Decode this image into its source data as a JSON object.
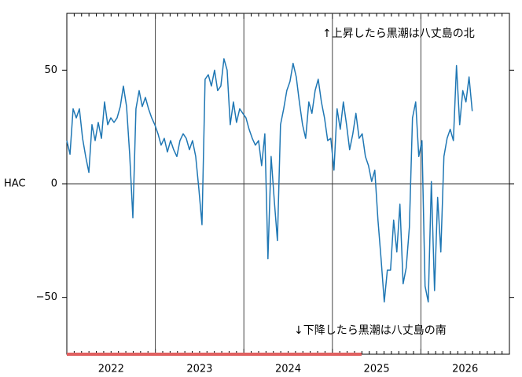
{
  "chart_data": {
    "type": "line",
    "y_label": "HAC",
    "annotations": [
      "↑上昇したら黒潮は八丈島の北",
      "↓下降したら黒潮は八丈島の南"
    ],
    "xlim": [
      2022,
      2027
    ],
    "xticks": [
      {
        "value": 2022.5,
        "label": "2022"
      },
      {
        "value": 2023.5,
        "label": "2023"
      },
      {
        "value": 2024.5,
        "label": "2024"
      },
      {
        "value": 2025.5,
        "label": "2025"
      },
      {
        "value": 2026.5,
        "label": "2026"
      }
    ],
    "xgrid": [
      2023,
      2024,
      2025,
      2026
    ],
    "ylim": [
      -75,
      75
    ],
    "yticks": [
      {
        "value": -50,
        "label": "−50"
      },
      0,
      50
    ],
    "hlines": [
      0
    ],
    "highlight": {
      "xrange": [
        2022,
        2025.33
      ],
      "color": "#e06060"
    },
    "series": [
      {
        "color": "#1f77b4",
        "x": [
          2022.0,
          2022.036,
          2022.071,
          2022.107,
          2022.142,
          2022.178,
          2022.213,
          2022.249,
          2022.284,
          2022.32,
          2022.355,
          2022.391,
          2022.426,
          2022.462,
          2022.497,
          2022.533,
          2022.568,
          2022.604,
          2022.639,
          2022.675,
          2022.71,
          2022.746,
          2022.781,
          2022.817,
          2022.852,
          2022.888,
          2022.923,
          2022.959,
          2022.994,
          2023.03,
          2023.065,
          2023.101,
          2023.136,
          2023.172,
          2023.207,
          2023.243,
          2023.278,
          2023.314,
          2023.349,
          2023.385,
          2023.42,
          2023.456,
          2023.491,
          2023.527,
          2023.562,
          2023.598,
          2023.633,
          2023.669,
          2023.704,
          2023.74,
          2023.775,
          2023.811,
          2023.846,
          2023.882,
          2023.917,
          2023.953,
          2023.988,
          2024.024,
          2024.059,
          2024.095,
          2024.13,
          2024.166,
          2024.201,
          2024.237,
          2024.272,
          2024.308,
          2024.343,
          2024.379,
          2024.414,
          2024.45,
          2024.485,
          2024.521,
          2024.556,
          2024.592,
          2024.627,
          2024.663,
          2024.698,
          2024.734,
          2024.769,
          2024.805,
          2024.84,
          2024.876,
          2024.911,
          2024.947,
          2024.982,
          2025.018,
          2025.053,
          2025.089,
          2025.124,
          2025.16,
          2025.195,
          2025.231,
          2025.266,
          2025.302,
          2025.337,
          2025.373,
          2025.408,
          2025.444,
          2025.479,
          2025.515,
          2025.55,
          2025.586,
          2025.621,
          2025.657,
          2025.692,
          2025.728,
          2025.763,
          2025.799,
          2025.834,
          2025.87,
          2025.905,
          2025.941,
          2025.976,
          2026.012,
          2026.047,
          2026.083,
          2026.118,
          2026.154,
          2026.189,
          2026.225,
          2026.26,
          2026.296,
          2026.331,
          2026.367,
          2026.402,
          2026.438,
          2026.473,
          2026.509,
          2026.544,
          2026.58
        ],
        "values": [
          19,
          13,
          33,
          29,
          33,
          20,
          12,
          5,
          26,
          19,
          27,
          20,
          36,
          26,
          29,
          27,
          29,
          34,
          43,
          34,
          13,
          -15,
          33,
          41,
          34,
          38,
          33,
          29,
          26,
          22,
          17,
          20,
          14,
          19,
          15,
          12,
          19,
          22,
          20,
          15,
          19,
          12,
          -2,
          -18,
          46,
          48,
          43,
          50,
          41,
          43,
          55,
          50,
          26,
          36,
          27,
          33,
          31,
          29,
          24,
          20,
          17,
          19,
          8,
          22,
          -33,
          12,
          -7,
          -25,
          26,
          33,
          41,
          45,
          53,
          47,
          36,
          26,
          20,
          36,
          31,
          41,
          46,
          36,
          29,
          19,
          20,
          6,
          33,
          24,
          36,
          26,
          15,
          22,
          31,
          20,
          22,
          12,
          8,
          1,
          6,
          -16,
          -33,
          -52,
          -38,
          -38,
          -16,
          -30,
          -9,
          -44,
          -37,
          -19,
          29,
          36,
          12,
          19,
          -45,
          -52,
          1,
          -47,
          -6,
          -30,
          12,
          20,
          24,
          19,
          52,
          26,
          41,
          36,
          47,
          32
        ]
      }
    ]
  }
}
